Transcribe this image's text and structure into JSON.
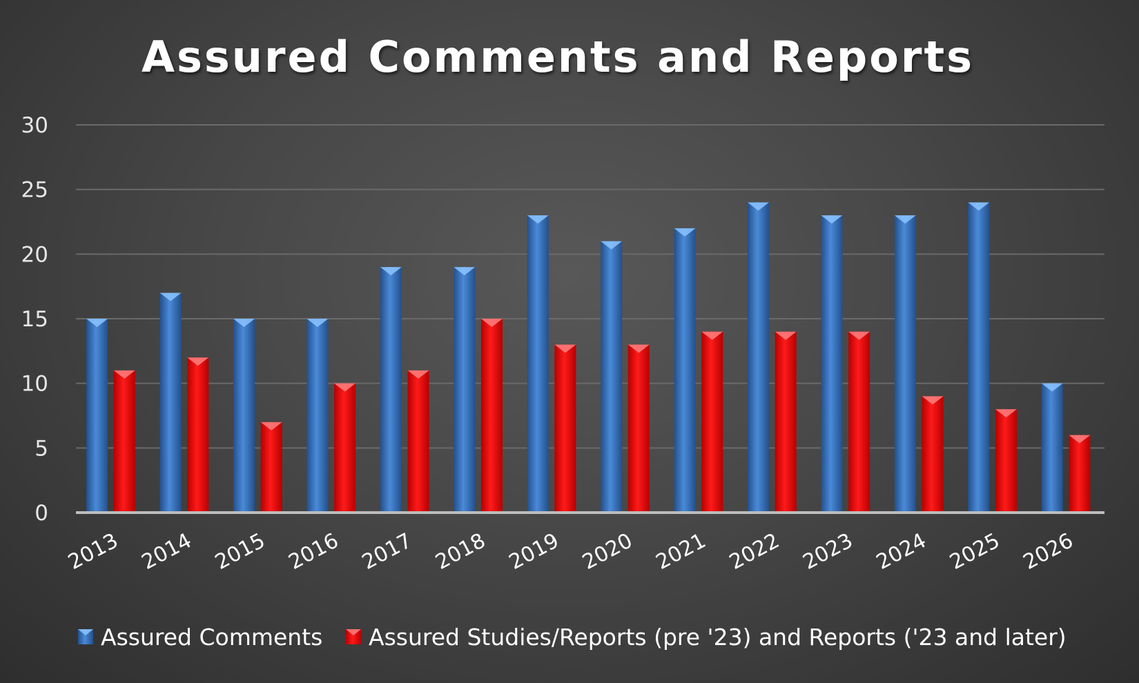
{
  "chart_data": {
    "type": "bar",
    "title": "Assured Comments and Reports",
    "categories": [
      "2013",
      "2014",
      "2015",
      "2016",
      "2017",
      "2018",
      "2019",
      "2020",
      "2021",
      "2022",
      "2023",
      "2024",
      "2025",
      "2026"
    ],
    "series": [
      {
        "name": "Assured Comments",
        "color": "#3a78c8",
        "values": [
          15,
          17,
          15,
          15,
          19,
          19,
          23,
          21,
          22,
          24,
          23,
          23,
          24,
          10
        ]
      },
      {
        "name": "Assured Studies/Reports (pre '23) and Reports ('23 and later)",
        "color": "#ff0000",
        "values": [
          11,
          12,
          7,
          10,
          11,
          15,
          13,
          13,
          14,
          14,
          14,
          9,
          8,
          6
        ]
      }
    ],
    "ylim": [
      0,
      30
    ],
    "yticks": [
      0,
      5,
      10,
      15,
      20,
      25,
      30
    ],
    "grid": true,
    "legend": "bottom"
  }
}
